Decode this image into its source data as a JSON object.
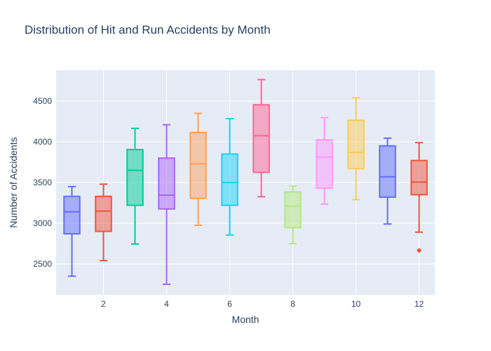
{
  "chart_data": {
    "type": "box",
    "title": "Distribution of Hit and Run Accidents by Month",
    "xlabel": "Month",
    "ylabel": "Number of Accidents",
    "xlim": [
      0.5,
      12.5
    ],
    "ylim": [
      2120,
      4880
    ],
    "x_ticks": [
      2,
      4,
      6,
      8,
      10,
      12
    ],
    "y_ticks": [
      2500,
      3000,
      3500,
      4000,
      4500
    ],
    "grid": true,
    "legend": "none",
    "series": [
      {
        "x": 1,
        "color": "#636efa",
        "min": 2350,
        "q1": 2870,
        "median": 3140,
        "q3": 3330,
        "max": 3450,
        "outliers": []
      },
      {
        "x": 2,
        "color": "#ef553b",
        "min": 2540,
        "q1": 2900,
        "median": 3150,
        "q3": 3330,
        "max": 3480,
        "outliers": []
      },
      {
        "x": 3,
        "color": "#00cc96",
        "min": 2745,
        "q1": 3220,
        "median": 3650,
        "q3": 3905,
        "max": 4165,
        "outliers": []
      },
      {
        "x": 4,
        "color": "#ab63fa",
        "min": 2250,
        "q1": 3175,
        "median": 3345,
        "q3": 3800,
        "max": 4210,
        "outliers": []
      },
      {
        "x": 5,
        "color": "#ffa15a",
        "min": 2975,
        "q1": 3305,
        "median": 3730,
        "q3": 4115,
        "max": 4350,
        "outliers": []
      },
      {
        "x": 6,
        "color": "#19d3f3",
        "min": 2855,
        "q1": 3220,
        "median": 3500,
        "q3": 3850,
        "max": 4285,
        "outliers": []
      },
      {
        "x": 7,
        "color": "#ff6692",
        "min": 3325,
        "q1": 3625,
        "median": 4075,
        "q3": 4455,
        "max": 4765,
        "outliers": []
      },
      {
        "x": 8,
        "color": "#b6e880",
        "min": 2750,
        "q1": 2945,
        "median": 3210,
        "q3": 3385,
        "max": 3455,
        "outliers": []
      },
      {
        "x": 9,
        "color": "#ff97ff",
        "min": 3235,
        "q1": 3430,
        "median": 3810,
        "q3": 4025,
        "max": 4295,
        "outliers": []
      },
      {
        "x": 10,
        "color": "#fecb52",
        "min": 3290,
        "q1": 3670,
        "median": 3870,
        "q3": 4265,
        "max": 4540,
        "outliers": []
      },
      {
        "x": 11,
        "color": "#636efa",
        "min": 2990,
        "q1": 3320,
        "median": 3570,
        "q3": 3950,
        "max": 4045,
        "outliers": []
      },
      {
        "x": 12,
        "color": "#ef553b",
        "min": 2890,
        "q1": 3350,
        "median": 3505,
        "q3": 3770,
        "max": 3990,
        "outliers": [
          2665
        ]
      }
    ],
    "colors": {
      "plot_background": "#e5ecf6",
      "gridline": "#ffffff",
      "text": "#2a3f5f"
    }
  }
}
